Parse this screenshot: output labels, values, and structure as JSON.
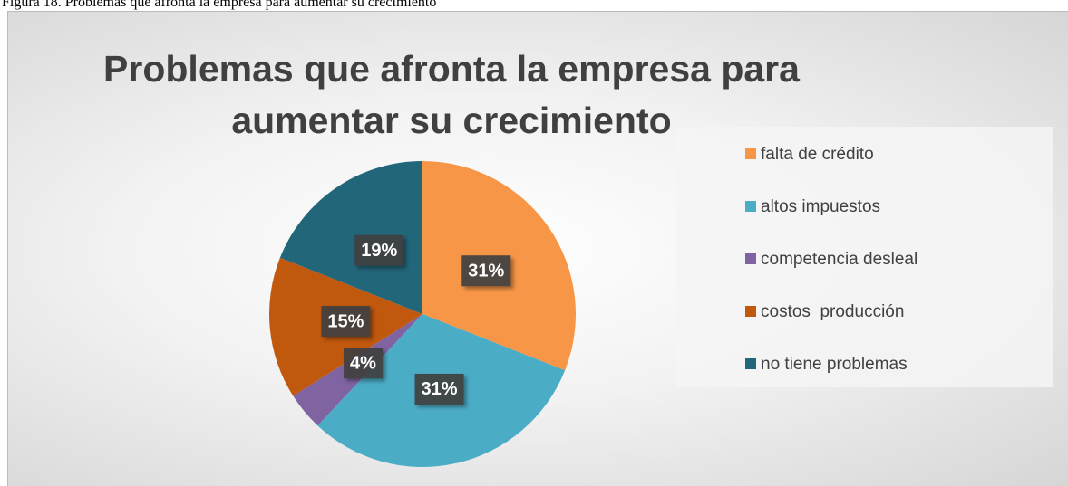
{
  "caption": "Figura 18. Problemas que afronta la empresa para aumentar su crecimiento",
  "chart_data": {
    "type": "pie",
    "title": "Problemas que afronta la empresa para aumentar su crecimiento",
    "categories": [
      "falta de crédito",
      "altos impuestos",
      "competencia desleal",
      "costos  producción",
      "no tiene problemas"
    ],
    "values": [
      31,
      31,
      4,
      15,
      19
    ],
    "value_labels": [
      "31%",
      "31%",
      "4%",
      "15%",
      "19%"
    ],
    "colors": [
      "#f79646",
      "#4bacc6",
      "#8064a2",
      "#c0580e",
      "#22667a"
    ],
    "legend": "right"
  }
}
